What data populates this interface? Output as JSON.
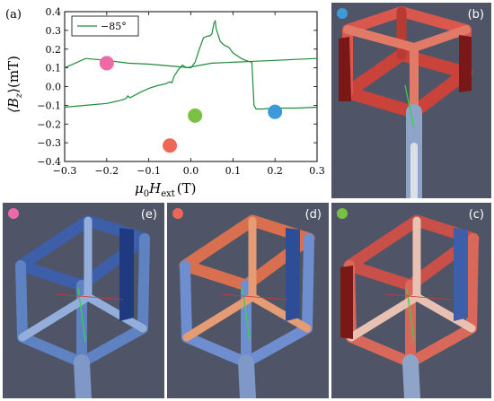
{
  "colors": {
    "pink": "#ee6aa7",
    "salmon": "#ee6655",
    "green": "#7ac143",
    "blue": "#3d9ad8",
    "curve": "#1f8a3a",
    "sim_bg": "#4f5566"
  },
  "chart_data": {
    "type": "line",
    "panel_label": "(a)",
    "xlabel_main": "μ",
    "xlabel_sub0": "0",
    "xlabel_main2": "H",
    "xlabel_sub": "ext",
    "xlabel_unit": "(T)",
    "ylabel_open": "⟨B",
    "ylabel_sub": "z",
    "ylabel_close": "⟩(mT)",
    "xlim": [
      -0.3,
      0.3
    ],
    "ylim": [
      -0.4,
      0.4
    ],
    "xticks": [
      "−0.3",
      "−0.2",
      "−0.1",
      "0.0",
      "0.1",
      "0.2",
      "0.3"
    ],
    "xtick_values": [
      -0.3,
      -0.2,
      -0.1,
      0.0,
      0.1,
      0.2,
      0.3
    ],
    "yticks": [
      "0.4",
      "0.3",
      "0.2",
      "0.1",
      "0.0",
      "−0.1",
      "−0.2",
      "−0.3",
      "−0.4"
    ],
    "ytick_values": [
      0.4,
      0.3,
      0.2,
      0.1,
      0.0,
      -0.1,
      -0.2,
      -0.3,
      -0.4
    ],
    "legend": "−85°",
    "series": [
      {
        "name": "−85°",
        "x": [
          -0.3,
          -0.25,
          -0.2,
          -0.17,
          -0.155,
          -0.15,
          -0.145,
          -0.12,
          -0.1,
          -0.08,
          -0.06,
          -0.055,
          -0.05,
          -0.045,
          -0.04,
          -0.03,
          -0.02,
          -0.01,
          0.0,
          0.05,
          0.1,
          0.15,
          0.2,
          0.25,
          0.3
        ],
        "y": [
          -0.11,
          -0.1,
          -0.09,
          -0.075,
          -0.065,
          -0.05,
          -0.06,
          -0.03,
          -0.01,
          0.005,
          0.015,
          0.02,
          0.025,
          0.02,
          0.055,
          0.09,
          0.115,
          0.1,
          0.105,
          0.125,
          0.13,
          0.135,
          0.14,
          0.145,
          0.15
        ]
      },
      {
        "name": "−85°",
        "x": [
          0.3,
          0.25,
          0.2,
          0.17,
          0.155,
          0.15,
          0.145,
          0.13,
          0.12,
          0.1,
          0.09,
          0.08,
          0.07,
          0.06,
          0.058,
          0.055,
          0.05,
          0.045,
          0.04,
          0.03,
          0.02,
          0.01,
          0.0,
          -0.05,
          -0.1,
          -0.15,
          -0.2,
          -0.25,
          -0.3
        ],
        "y": [
          -0.11,
          -0.115,
          -0.115,
          -0.12,
          -0.12,
          -0.1,
          0.13,
          0.14,
          0.15,
          0.18,
          0.21,
          0.22,
          0.24,
          0.31,
          0.35,
          0.34,
          0.28,
          0.27,
          0.27,
          0.26,
          0.2,
          0.13,
          0.1,
          0.11,
          0.12,
          0.125,
          0.14,
          0.15,
          0.1
        ]
      }
    ],
    "markers": [
      {
        "x": -0.2,
        "y": 0.125,
        "color": "#ee6aa7"
      },
      {
        "x": -0.05,
        "y": -0.315,
        "color": "#ee6655"
      },
      {
        "x": 0.01,
        "y": -0.155,
        "color": "#7ac143"
      },
      {
        "x": 0.2,
        "y": -0.135,
        "color": "#3d9ad8"
      }
    ]
  },
  "panels": {
    "b": {
      "label": "(b)",
      "dot": "#3d9ad8"
    },
    "c": {
      "label": "(c)",
      "dot": "#7ac143"
    },
    "d": {
      "label": "(d)",
      "dot": "#ee6655"
    },
    "e": {
      "label": "(e)",
      "dot": "#ee6aa7"
    }
  }
}
